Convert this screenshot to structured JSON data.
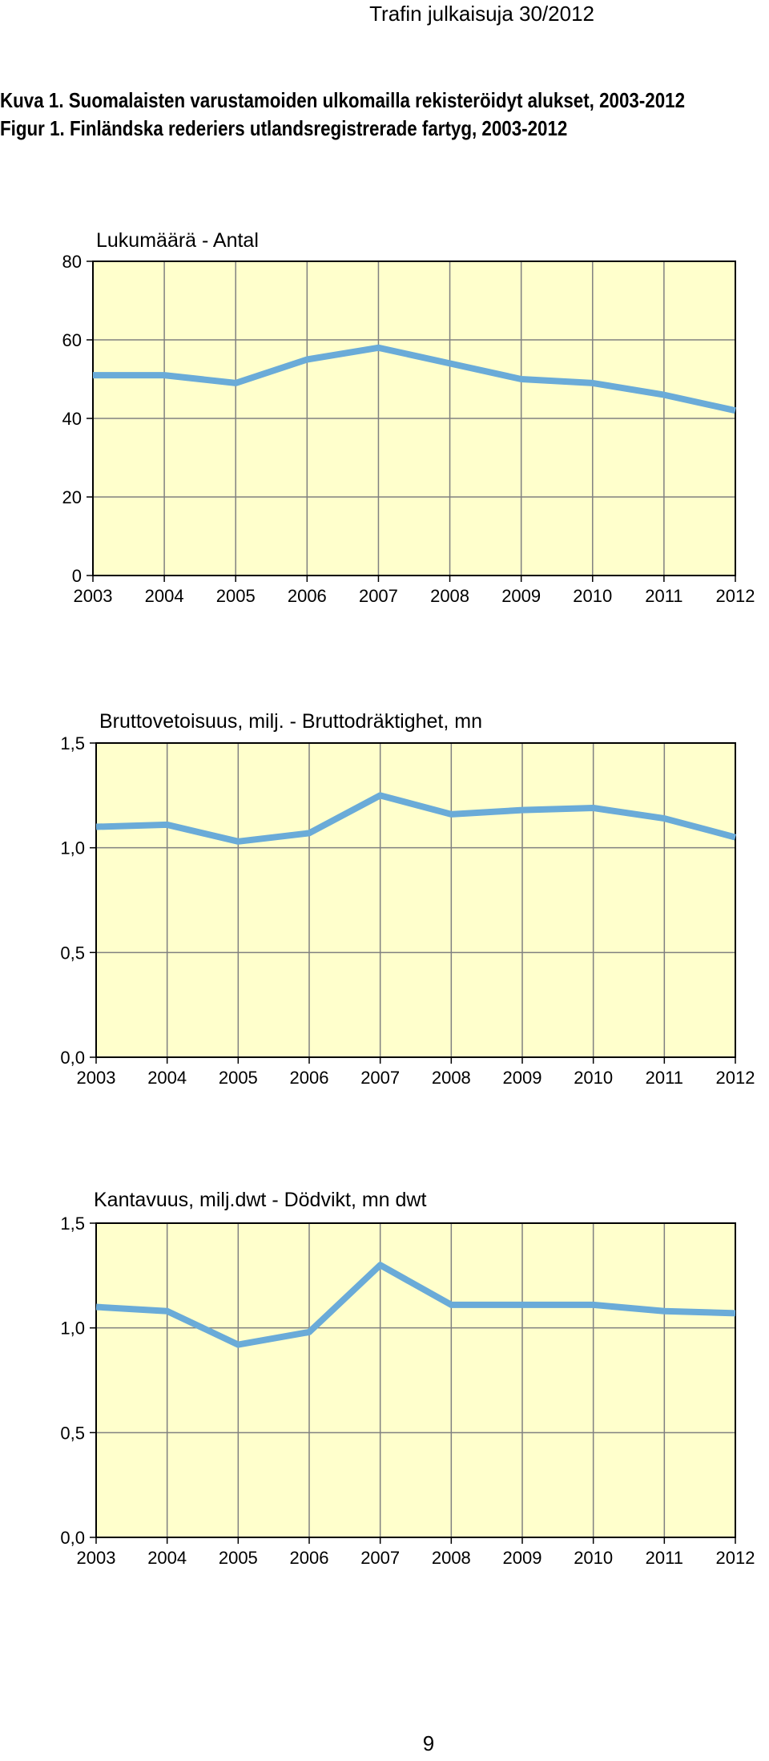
{
  "header": {
    "text": "Trafin julkaisuja 30/2012"
  },
  "captions": {
    "fi": "Kuva 1. Suomalaisten varustamoiden ulkomailla rekisteröidyt alukset, 2003-2012",
    "sv": "Figur 1. Finländska rederiers utlandsregistrerade fartyg, 2003-2012"
  },
  "colors": {
    "line": "#6aabd8",
    "plot_bg": "#ffffcc",
    "grid": "#808080",
    "frame": "#000000"
  },
  "chart_data": [
    {
      "type": "line",
      "title": "Lukumäärä - Antal",
      "x": [
        "2003",
        "2004",
        "2005",
        "2006",
        "2007",
        "2008",
        "2009",
        "2010",
        "2011",
        "2012"
      ],
      "series": [
        {
          "values": [
            51,
            51,
            49,
            55,
            58,
            54,
            50,
            49,
            46,
            42
          ]
        }
      ],
      "ylim": [
        0,
        80
      ],
      "yticks": [
        "0",
        "20",
        "40",
        "60",
        "80"
      ],
      "ytick_values": [
        0,
        20,
        40,
        60,
        80
      ],
      "grid": true
    },
    {
      "type": "line",
      "title": "Bruttovetoisuus, milj. - Bruttodräktighet, mn",
      "x": [
        "2003",
        "2004",
        "2005",
        "2006",
        "2007",
        "2008",
        "2009",
        "2010",
        "2011",
        "2012"
      ],
      "series": [
        {
          "values": [
            1.1,
            1.11,
            1.03,
            1.07,
            1.25,
            1.16,
            1.18,
            1.19,
            1.14,
            1.05
          ]
        }
      ],
      "ylim": [
        0,
        1.5
      ],
      "yticks": [
        "0,0",
        "0,5",
        "1,0",
        "1,5"
      ],
      "ytick_values": [
        0,
        0.5,
        1.0,
        1.5
      ],
      "grid": true
    },
    {
      "type": "line",
      "title": "Kantavuus, milj.dwt - Dödvikt, mn dwt",
      "x": [
        "2003",
        "2004",
        "2005",
        "2006",
        "2007",
        "2008",
        "2009",
        "2010",
        "2011",
        "2012"
      ],
      "series": [
        {
          "values": [
            1.1,
            1.08,
            0.92,
            0.98,
            1.3,
            1.11,
            1.11,
            1.11,
            1.08,
            1.07
          ]
        }
      ],
      "ylim": [
        0,
        1.5
      ],
      "yticks": [
        "0,0",
        "0,5",
        "1,0",
        "1,5"
      ],
      "ytick_values": [
        0,
        0.5,
        1.0,
        1.5
      ],
      "grid": true
    }
  ],
  "page_number": "9"
}
